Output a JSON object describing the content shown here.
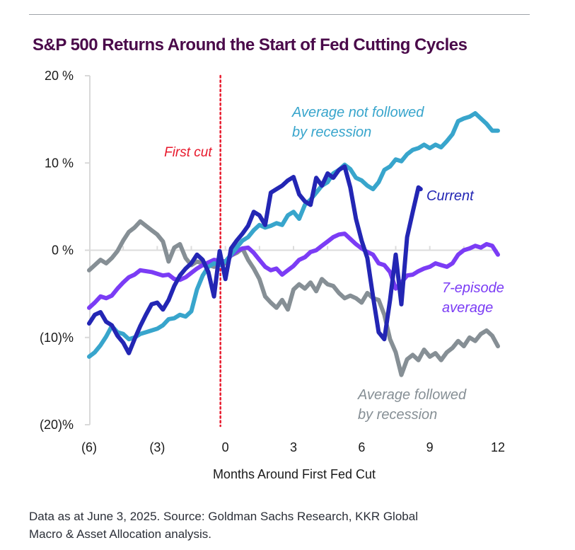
{
  "chart_data": {
    "type": "line",
    "title": "S&P 500 Returns Around the Start of Fed Cutting Cycles",
    "xlabel": "Months Around First Fed Cut",
    "ylabel": "",
    "xlim": [
      -6,
      12
    ],
    "ylim": [
      -20,
      20
    ],
    "x_ticks": [
      -6,
      -3,
      0,
      3,
      6,
      9,
      12
    ],
    "x_tick_labels": [
      "(6)",
      "(3)",
      "0",
      "3",
      "6",
      "9",
      "12"
    ],
    "y_ticks": [
      20,
      10,
      0,
      -10,
      -20
    ],
    "y_tick_labels": [
      "20 %",
      "10 %",
      "0 %",
      "(10)%",
      "(20)%"
    ],
    "grid": false,
    "reference_line": {
      "x": 0,
      "label": "First cut",
      "color": "#e8192c",
      "style": "dotted"
    },
    "series": [
      {
        "name": "Average followed by recession",
        "label_lines": [
          "Average followed",
          "by recession"
        ],
        "color": "#868f95",
        "x": [
          -6,
          -5.5,
          -5.25,
          -5,
          -4.75,
          -4.5,
          -4.25,
          -4,
          -3.75,
          -3.5,
          -3.25,
          -3,
          -2.75,
          -2.5,
          -2.25,
          -2,
          -1.75,
          -1.5,
          -1.25,
          -1,
          -0.5,
          0,
          0.25,
          0.5,
          0.75,
          1,
          1.25,
          1.5,
          1.75,
          2,
          2.25,
          2.5,
          2.75,
          3,
          3.25,
          3.5,
          3.75,
          4,
          4.25,
          4.5,
          4.75,
          5,
          5.25,
          5.5,
          5.75,
          6,
          6.25,
          6.5,
          6.75,
          7,
          7.25,
          7.5,
          7.75,
          8,
          8.25,
          8.5,
          8.75,
          9,
          9.25,
          9.5,
          9.75,
          10,
          10.25,
          10.5,
          10.75,
          11,
          11.25,
          11.5,
          11.75,
          12
        ],
        "values": [
          -2.3,
          -1.1,
          -1.5,
          -0.9,
          -0.1,
          1.1,
          2.1,
          2.6,
          3.3,
          2.8,
          2.3,
          1.8,
          1.0,
          -1.3,
          0.3,
          0.7,
          -0.9,
          -1.7,
          -1.3,
          -1.5,
          -1.9,
          -1.5,
          -0.6,
          -0.3,
          0.2,
          -1.1,
          -2.1,
          -3.3,
          -5.3,
          -6.0,
          -6.6,
          -5.7,
          -6.8,
          -4.5,
          -3.9,
          -4.4,
          -3.7,
          -4.7,
          -3.3,
          -3.9,
          -4.1,
          -4.9,
          -5.5,
          -5.2,
          -5.5,
          -6.0,
          -4.9,
          -5.5,
          -5.7,
          -7.4,
          -10.2,
          -11.7,
          -14.3,
          -12.5,
          -12.0,
          -12.6,
          -11.4,
          -12.2,
          -11.8,
          -12.6,
          -11.7,
          -11.2,
          -10.4,
          -11.0,
          -10.0,
          -10.4,
          -9.6,
          -9.2,
          -9.8,
          -11.0
        ]
      },
      {
        "name": "7-episode average",
        "label_lines": [
          "7-episode",
          "average"
        ],
        "color": "#7b3cf5",
        "x": [
          -6,
          -5.75,
          -5.5,
          -5.25,
          -5,
          -4.75,
          -4.5,
          -4.25,
          -4,
          -3.75,
          -3.5,
          -3.25,
          -3,
          -2.75,
          -2.5,
          -2.25,
          -2,
          -1.75,
          -1.5,
          -1.25,
          -1,
          -0.5,
          0,
          0.25,
          0.5,
          0.75,
          1,
          1.25,
          1.5,
          1.75,
          2,
          2.25,
          2.5,
          2.75,
          3,
          3.25,
          3.5,
          3.75,
          4,
          4.25,
          4.5,
          4.75,
          5,
          5.25,
          5.5,
          5.75,
          6,
          6.25,
          6.5,
          6.75,
          7,
          7.25,
          7.5,
          7.75,
          8,
          8.25,
          8.5,
          8.75,
          9,
          9.25,
          9.5,
          9.75,
          10,
          10.25,
          10.5,
          10.75,
          11,
          11.25,
          11.5,
          11.75,
          12
        ],
        "values": [
          -6.6,
          -6.0,
          -5.3,
          -5.5,
          -5.2,
          -4.4,
          -3.7,
          -3.1,
          -2.8,
          -2.3,
          -2.4,
          -2.5,
          -2.7,
          -2.9,
          -2.8,
          -3.3,
          -3.4,
          -3.1,
          -2.6,
          -2.1,
          -1.7,
          -1.1,
          -1.3,
          -0.6,
          -0.1,
          0.2,
          0.3,
          -0.3,
          -1.1,
          -1.9,
          -2.3,
          -2.1,
          -2.8,
          -2.3,
          -1.8,
          -1.1,
          -0.8,
          -0.2,
          0.0,
          0.5,
          1.0,
          1.5,
          1.8,
          1.9,
          1.3,
          0.7,
          0.2,
          -0.2,
          -0.5,
          -1.5,
          -1.7,
          -2.5,
          -4.4,
          -3.7,
          -2.9,
          -2.8,
          -2.4,
          -2.1,
          -1.9,
          -1.5,
          -1.7,
          -1.9,
          -1.5,
          -0.5,
          0.0,
          0.2,
          0.5,
          0.3,
          0.7,
          0.5,
          -0.5
        ]
      },
      {
        "name": "Average not followed by recession",
        "label_lines": [
          "Average not followed",
          "by recession"
        ],
        "color": "#38a5cc",
        "x": [
          -6,
          -5.75,
          -5.5,
          -5.25,
          -5,
          -4.75,
          -4.5,
          -4.25,
          -4,
          -3.75,
          -3.5,
          -3.25,
          -3,
          -2.75,
          -2.5,
          -2.25,
          -2,
          -1.75,
          -1.5,
          -1.25,
          -1,
          -0.75,
          -0.5,
          -0.25,
          0,
          0.25,
          0.5,
          0.75,
          1,
          1.25,
          1.5,
          1.75,
          2,
          2.25,
          2.5,
          2.75,
          3,
          3.25,
          3.5,
          3.75,
          4,
          4.25,
          4.5,
          4.75,
          5,
          5.25,
          5.5,
          5.75,
          6,
          6.25,
          6.5,
          6.75,
          7,
          7.25,
          7.5,
          7.75,
          8,
          8.25,
          8.5,
          8.75,
          9,
          9.25,
          9.5,
          9.75,
          10,
          10.25,
          10.5,
          10.75,
          11,
          11.25,
          11.5,
          11.75,
          12
        ],
        "values": [
          -12.2,
          -11.7,
          -10.9,
          -9.9,
          -8.7,
          -9.4,
          -9.6,
          -10.2,
          -10.0,
          -9.6,
          -9.4,
          -9.2,
          -9.0,
          -8.6,
          -7.9,
          -7.8,
          -7.4,
          -7.6,
          -7.0,
          -4.5,
          -2.9,
          -1.9,
          -1.5,
          -1.7,
          -1.3,
          -0.5,
          0.3,
          1.1,
          1.5,
          2.3,
          2.9,
          2.6,
          2.8,
          3.1,
          2.9,
          4.0,
          4.4,
          3.6,
          5.2,
          5.8,
          6.6,
          7.4,
          7.8,
          8.8,
          9.2,
          9.8,
          9.3,
          8.3,
          8.0,
          7.4,
          7.0,
          7.8,
          9.2,
          9.6,
          10.4,
          10.2,
          11.0,
          11.5,
          11.7,
          12.1,
          11.7,
          12.1,
          11.8,
          12.5,
          13.3,
          14.8,
          15.1,
          15.3,
          15.7,
          15.1,
          14.5,
          13.7,
          13.7
        ]
      },
      {
        "name": "Current",
        "label_lines": [
          "Current"
        ],
        "color": "#2326b4",
        "x": [
          -6,
          -5.75,
          -5.5,
          -5.25,
          -5,
          -4.75,
          -4.5,
          -4.25,
          -4,
          -3.75,
          -3.5,
          -3.25,
          -3,
          -2.75,
          -2.5,
          -2.25,
          -2,
          -1.75,
          -1.5,
          -1.25,
          -1,
          -0.75,
          -0.5,
          -0.25,
          0,
          0.25,
          0.5,
          0.75,
          1,
          1.25,
          1.5,
          1.75,
          2,
          2.25,
          2.5,
          2.75,
          3,
          3.25,
          3.5,
          3.75,
          4,
          4.25,
          4.5,
          4.75,
          5,
          5.25,
          5.5,
          5.75,
          6,
          6.25,
          6.5,
          6.75,
          7,
          7.25,
          7.5,
          7.75,
          8,
          8.25,
          8.5,
          8.6
        ],
        "values": [
          -8.4,
          -7.4,
          -7.1,
          -8.2,
          -8.6,
          -9.8,
          -10.6,
          -11.8,
          -10.2,
          -8.7,
          -7.4,
          -6.2,
          -6.0,
          -6.8,
          -5.7,
          -4.1,
          -2.9,
          -2.1,
          -1.5,
          -0.5,
          -1.1,
          -2.5,
          -5.3,
          -0.1,
          -3.3,
          0.2,
          1.1,
          1.9,
          2.8,
          4.4,
          4.0,
          2.9,
          6.6,
          7.0,
          7.4,
          8.0,
          8.4,
          6.4,
          5.6,
          5.2,
          8.3,
          7.4,
          8.8,
          8.3,
          9.2,
          9.6,
          7.2,
          3.6,
          1.1,
          -0.9,
          -5.3,
          -9.4,
          -10.2,
          -5.7,
          -0.5,
          -6.2,
          1.5,
          4.4,
          7.2,
          7.0
        ]
      }
    ]
  },
  "footnote_lines": [
    "Data as at June 3, 2025. Source: Goldman Sachs Research, KKR Global",
    "Macro & Asset Allocation analysis."
  ]
}
